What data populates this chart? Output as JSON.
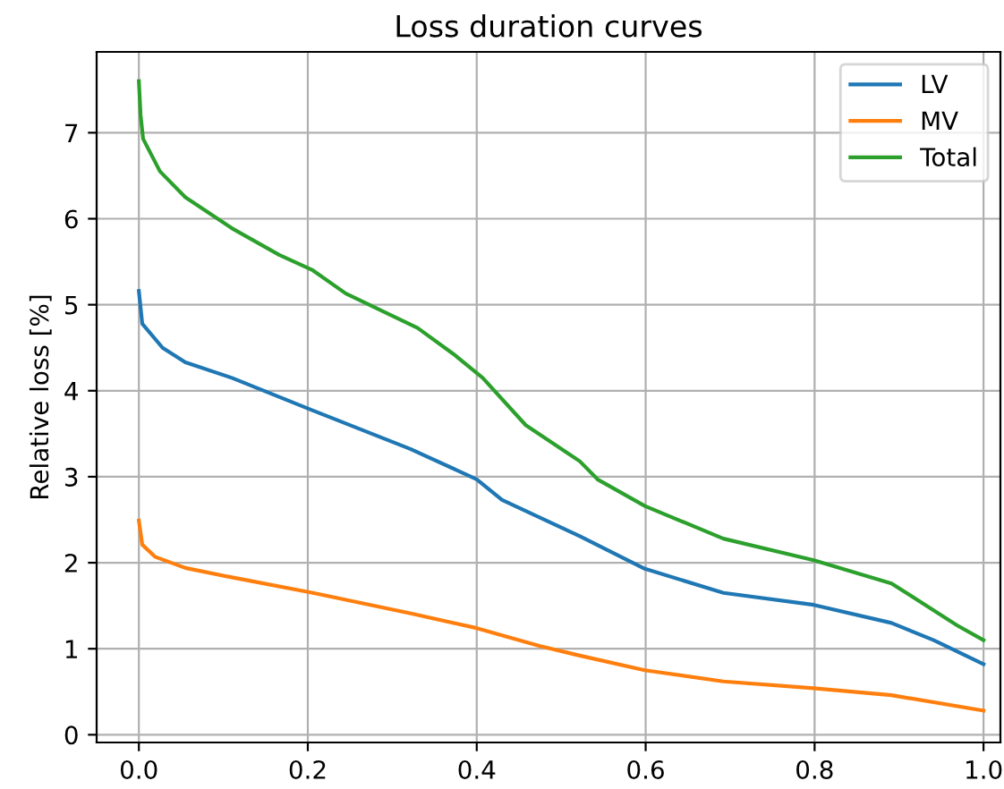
{
  "chart_data": {
    "type": "line",
    "title": "Loss duration curves",
    "ylabel": "Relative loss [%]",
    "xlim": [
      -0.05,
      1.02
    ],
    "ylim": [
      -0.09,
      7.94
    ],
    "xticks": [
      {
        "value": 0,
        "label": "0.0"
      },
      {
        "value": 0.2,
        "label": "0.2"
      },
      {
        "value": 0.4,
        "label": "0.4"
      },
      {
        "value": 0.6,
        "label": "0.6"
      },
      {
        "value": 0.8,
        "label": "0.8"
      },
      {
        "value": 1,
        "label": "1.0"
      }
    ],
    "yticks": [
      0,
      1,
      2,
      3,
      4,
      5,
      6,
      7
    ],
    "grid": true,
    "legend": "top right",
    "series": [
      {
        "name": "LV",
        "color": "#1f77b4",
        "x": [
          0,
          0.004,
          0.028,
          0.055,
          0.11,
          0.206,
          0.322,
          0.4,
          0.43,
          0.522,
          0.599,
          0.692,
          0.799,
          0.891,
          0.941,
          1.0
        ],
        "values": [
          5.16,
          4.78,
          4.5,
          4.33,
          4.15,
          3.77,
          3.32,
          2.97,
          2.73,
          2.31,
          1.93,
          1.65,
          1.51,
          1.3,
          1.1,
          0.82
        ]
      },
      {
        "name": "MV",
        "color": "#ff7f0e",
        "x": [
          0,
          0.004,
          0.019,
          0.055,
          0.11,
          0.206,
          0.322,
          0.4,
          0.475,
          0.522,
          0.599,
          0.692,
          0.799,
          0.891,
          1.0
        ],
        "values": [
          2.49,
          2.21,
          2.07,
          1.94,
          1.83,
          1.65,
          1.41,
          1.24,
          1.03,
          0.92,
          0.75,
          0.62,
          0.54,
          0.46,
          0.28
        ]
      },
      {
        "name": "Total",
        "color": "#2ca02c",
        "x": [
          0,
          0.002,
          0.005,
          0.025,
          0.055,
          0.11,
          0.166,
          0.206,
          0.245,
          0.33,
          0.372,
          0.407,
          0.458,
          0.522,
          0.543,
          0.599,
          0.692,
          0.799,
          0.891,
          0.969,
          1.0
        ],
        "values": [
          7.6,
          7.21,
          6.93,
          6.55,
          6.25,
          5.89,
          5.58,
          5.4,
          5.13,
          4.73,
          4.43,
          4.15,
          3.6,
          3.18,
          2.97,
          2.66,
          2.28,
          2.03,
          1.76,
          1.27,
          1.1
        ]
      }
    ]
  }
}
